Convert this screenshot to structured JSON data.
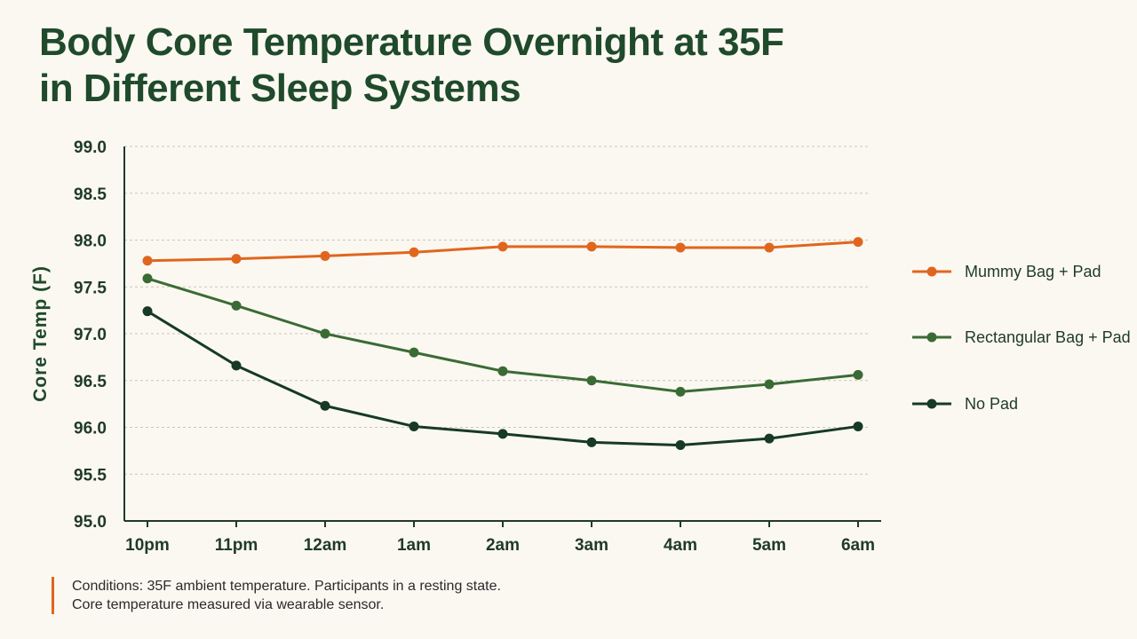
{
  "title": {
    "line1": "Body Core Temperature Overnight at 35F",
    "line2": "in Different Sleep Systems"
  },
  "note": {
    "line1": "Conditions: 35F ambient temperature. Participants in a resting state.",
    "line2": "Core temperature measured via wearable sensor."
  },
  "colors": {
    "accent": "#e0661e",
    "mid_green": "#3b6b35",
    "dark_green": "#163a24",
    "title": "#1f4a2b"
  },
  "chart_data": {
    "type": "line",
    "title": "Body Core Temperature Overnight at 35F in Different Sleep Systems",
    "xlabel": "",
    "ylabel": "Core Temp (F)",
    "x": [
      "10pm",
      "11pm",
      "12am",
      "1am",
      "2am",
      "3am",
      "4am",
      "5am",
      "6am"
    ],
    "ylim": [
      95.0,
      99.0
    ],
    "yticks": [
      "95.0",
      "95.5",
      "96.0",
      "96.5",
      "97.0",
      "97.5",
      "98.0",
      "98.5",
      "99.0"
    ],
    "grid": "horizontal dotted",
    "legend_position": "right",
    "series": [
      {
        "name": "Mummy Bag + Pad",
        "color": "#e0661e",
        "values": [
          97.78,
          97.8,
          97.83,
          97.87,
          97.93,
          97.93,
          97.92,
          97.92,
          97.98
        ]
      },
      {
        "name": "Rectangular Bag + Pad",
        "color": "#3b6b35",
        "values": [
          97.59,
          97.3,
          97.0,
          96.8,
          96.6,
          96.5,
          96.38,
          96.46,
          96.56
        ]
      },
      {
        "name": "No Pad",
        "color": "#163a24",
        "values": [
          97.24,
          96.66,
          96.23,
          96.01,
          95.93,
          95.84,
          95.81,
          95.88,
          96.01
        ]
      }
    ]
  }
}
